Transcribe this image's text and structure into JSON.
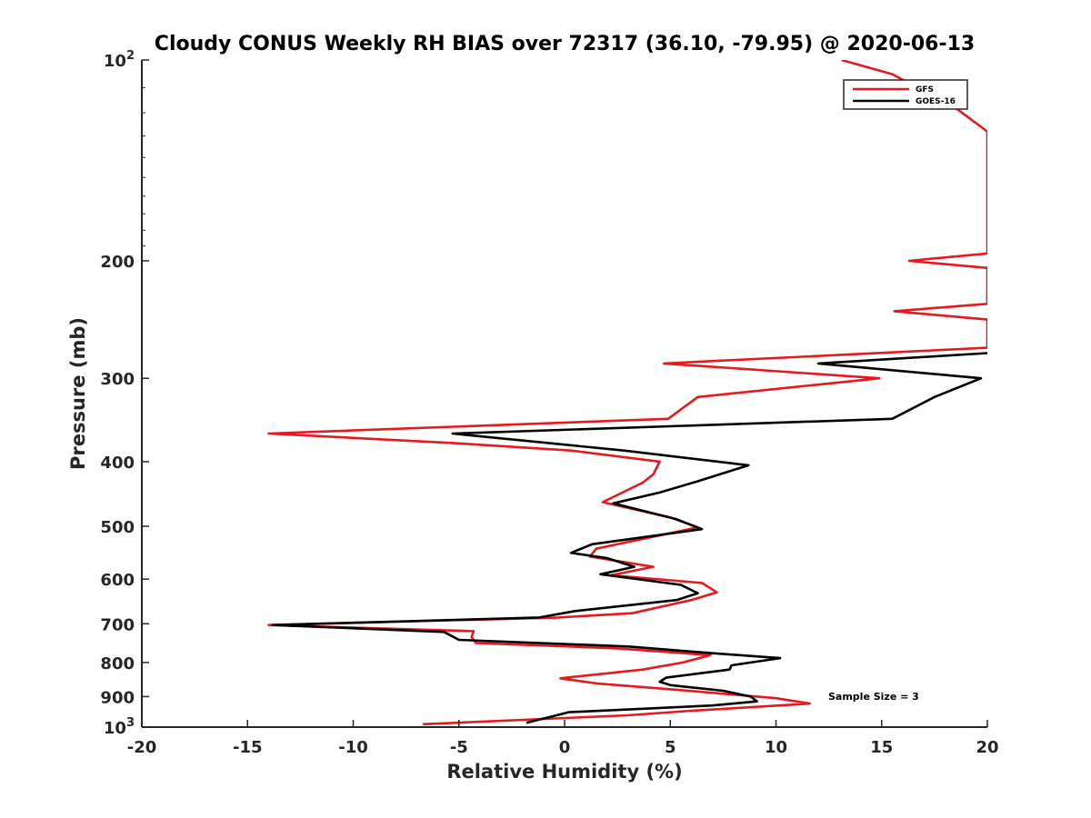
{
  "chart_data": {
    "type": "line",
    "title": "Cloudy CONUS Weekly RH BIAS over 72317 (36.10, -79.95) @ 2020-06-13",
    "xlabel": "Relative Humidity (%)",
    "ylabel": "Pressure (mb)",
    "xlim": [
      -20,
      20
    ],
    "ylim": [
      100,
      1000
    ],
    "yscale": "log",
    "y_reversed": true,
    "grid": false,
    "legend_position": "top-right",
    "x_ticks": [
      {
        "value": -20,
        "label": "-20"
      },
      {
        "value": -15,
        "label": "-15"
      },
      {
        "value": -10,
        "label": "-10"
      },
      {
        "value": -5,
        "label": "-5"
      },
      {
        "value": 0,
        "label": "0"
      },
      {
        "value": 5,
        "label": "5"
      },
      {
        "value": 10,
        "label": "10"
      },
      {
        "value": 15,
        "label": "15"
      },
      {
        "value": 20,
        "label": "20"
      }
    ],
    "y_ticks": [
      {
        "value": 100,
        "label": "10",
        "exp": "2"
      },
      {
        "value": 200,
        "label": "200"
      },
      {
        "value": 300,
        "label": "300"
      },
      {
        "value": 400,
        "label": "400"
      },
      {
        "value": 500,
        "label": "500"
      },
      {
        "value": 600,
        "label": "600"
      },
      {
        "value": 700,
        "label": "700"
      },
      {
        "value": 800,
        "label": "800"
      },
      {
        "value": 900,
        "label": "900"
      },
      {
        "value": 1000,
        "label": "10",
        "exp": "3"
      }
    ],
    "annotation": "Sample Size = 3",
    "series": [
      {
        "name": "GFS",
        "color": "#e41a1c",
        "points": [
          [
            13.1,
            100
          ],
          [
            15.5,
            105
          ],
          [
            18.5,
            118
          ],
          [
            20,
            128
          ],
          [
            20,
            195
          ],
          [
            16.3,
            200
          ],
          [
            20,
            205
          ],
          [
            20,
            232
          ],
          [
            15.6,
            238
          ],
          [
            20,
            245
          ],
          [
            20,
            270
          ],
          [
            4.7,
            285
          ],
          [
            14.9,
            300
          ],
          [
            6.3,
            320
          ],
          [
            4.9,
            345
          ],
          [
            -14,
            363
          ],
          [
            -5.4,
            375
          ],
          [
            0.3,
            385
          ],
          [
            4.5,
            400
          ],
          [
            4.2,
            418
          ],
          [
            3.7,
            430
          ],
          [
            1.8,
            460
          ],
          [
            5.0,
            485
          ],
          [
            6.3,
            502
          ],
          [
            1.5,
            540
          ],
          [
            1.2,
            555
          ],
          [
            4.2,
            575
          ],
          [
            2.2,
            592
          ],
          [
            6.5,
            608
          ],
          [
            7.2,
            628
          ],
          [
            6.0,
            645
          ],
          [
            3.2,
            675
          ],
          [
            -0.3,
            685
          ],
          [
            -14,
            703
          ],
          [
            -4.3,
            718
          ],
          [
            -4.4,
            733
          ],
          [
            -4.2,
            748
          ],
          [
            2.5,
            762
          ],
          [
            6.9,
            780
          ],
          [
            5.6,
            800
          ],
          [
            3.7,
            820
          ],
          [
            -0.2,
            845
          ],
          [
            1.5,
            860
          ],
          [
            5.5,
            880
          ],
          [
            10.0,
            905
          ],
          [
            11.6,
            922
          ],
          [
            6.0,
            945
          ],
          [
            3.0,
            960
          ],
          [
            -6.7,
            990
          ]
        ]
      },
      {
        "name": "GOES-16",
        "color": "#000000",
        "points": [
          [
            20,
            275
          ],
          [
            12.0,
            285
          ],
          [
            19.7,
            300
          ],
          [
            17.5,
            320
          ],
          [
            15.5,
            345
          ],
          [
            -5.3,
            363
          ],
          [
            2.8,
            385
          ],
          [
            8.7,
            405
          ],
          [
            6.3,
            428
          ],
          [
            4.5,
            445
          ],
          [
            2.3,
            462
          ],
          [
            5.3,
            488
          ],
          [
            6.5,
            505
          ],
          [
            1.3,
            532
          ],
          [
            0.3,
            548
          ],
          [
            2.0,
            558
          ],
          [
            3.3,
            575
          ],
          [
            1.7,
            590
          ],
          [
            5.5,
            612
          ],
          [
            6.3,
            630
          ],
          [
            5.3,
            645
          ],
          [
            0.5,
            670
          ],
          [
            -1.2,
            685
          ],
          [
            -13.8,
            703
          ],
          [
            -5.7,
            720
          ],
          [
            -5.0,
            740
          ],
          [
            3.0,
            757
          ],
          [
            7.0,
            775
          ],
          [
            10.2,
            788
          ],
          [
            7.9,
            808
          ],
          [
            7.8,
            820
          ],
          [
            4.8,
            843
          ],
          [
            4.5,
            855
          ],
          [
            5.0,
            865
          ],
          [
            7.5,
            882
          ],
          [
            8.8,
            900
          ],
          [
            9.1,
            915
          ],
          [
            7.0,
            928
          ],
          [
            0.2,
            950
          ],
          [
            -1.8,
            985
          ]
        ]
      }
    ]
  }
}
